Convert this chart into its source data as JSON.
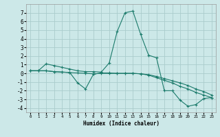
{
  "xlabel": "Humidex (Indice chaleur)",
  "bg_color": "#cce8e8",
  "grid_color": "#aacccc",
  "line_color": "#1a7a6a",
  "xlim": [
    -0.5,
    23.5
  ],
  "ylim": [
    -4.5,
    8.0
  ],
  "xticks": [
    0,
    1,
    2,
    3,
    4,
    5,
    6,
    7,
    8,
    9,
    10,
    11,
    12,
    13,
    14,
    15,
    16,
    17,
    18,
    19,
    20,
    21,
    22,
    23
  ],
  "yticks": [
    -4,
    -3,
    -2,
    -1,
    0,
    1,
    2,
    3,
    4,
    5,
    6,
    7
  ],
  "line1_x": [
    0,
    1,
    2,
    3,
    4,
    5,
    6,
    7,
    8,
    9,
    10,
    11,
    12,
    13,
    14,
    15,
    16,
    17,
    18,
    19,
    20,
    21,
    22,
    23
  ],
  "line1_y": [
    0.3,
    0.3,
    1.1,
    0.9,
    0.7,
    0.5,
    0.3,
    0.2,
    0.2,
    0.15,
    1.2,
    4.8,
    7.0,
    7.2,
    4.5,
    2.1,
    1.8,
    -2.0,
    -2.0,
    -3.1,
    -3.8,
    -3.6,
    -2.9,
    -2.8
  ],
  "line2_x": [
    0,
    1,
    2,
    3,
    4,
    5,
    6,
    7,
    8,
    9,
    10,
    11,
    12,
    13,
    14,
    15,
    16,
    17,
    18,
    19,
    20,
    21,
    22,
    23
  ],
  "line2_y": [
    0.3,
    0.3,
    0.3,
    0.2,
    0.15,
    0.1,
    -1.1,
    -1.8,
    -0.1,
    0.05,
    0.05,
    0.0,
    0.0,
    0.0,
    -0.05,
    -0.2,
    -0.5,
    -0.8,
    -1.1,
    -1.5,
    -1.8,
    -2.2,
    -2.5,
    -2.8
  ],
  "line3_x": [
    0,
    1,
    2,
    3,
    4,
    5,
    6,
    7,
    8,
    9,
    10,
    11,
    12,
    13,
    14,
    15,
    16,
    17,
    18,
    19,
    20,
    21,
    22,
    23
  ],
  "line3_y": [
    0.3,
    0.3,
    0.3,
    0.2,
    0.15,
    0.1,
    0.05,
    0.0,
    -0.05,
    0.0,
    0.0,
    0.0,
    0.0,
    0.0,
    -0.05,
    -0.15,
    -0.35,
    -0.6,
    -0.85,
    -1.1,
    -1.4,
    -1.8,
    -2.1,
    -2.5
  ]
}
